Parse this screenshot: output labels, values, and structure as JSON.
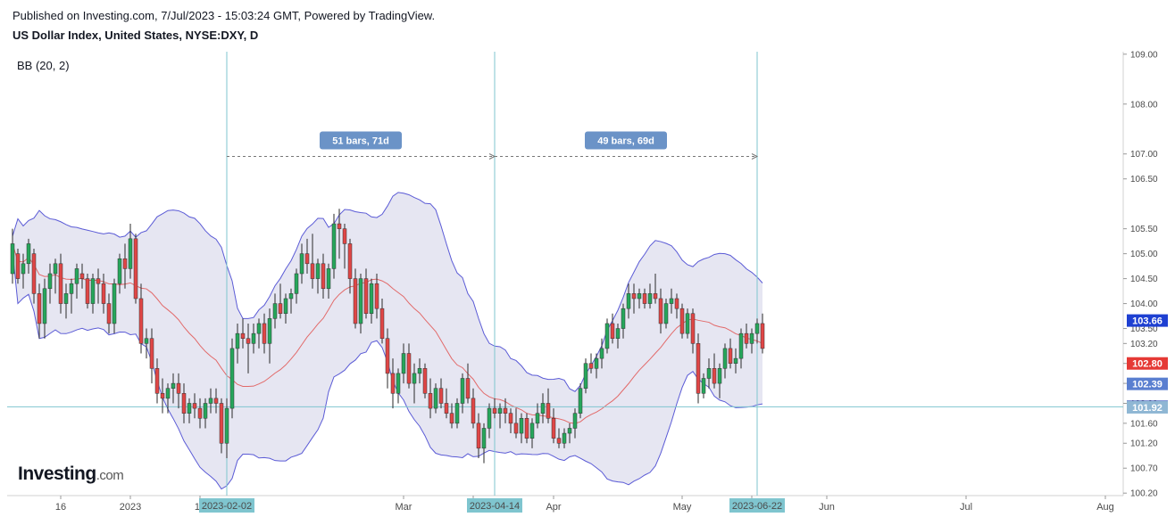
{
  "header": {
    "published": "Published on Investing.com, 7/Jul/2023 - 15:03:24 GMT, Powered by TradingView.",
    "title": "US Dollar Index, United States, NYSE:DXY, D",
    "indicator": "BB (20, 2)"
  },
  "logo": {
    "main": "Investing",
    "suffix": ".com"
  },
  "colors": {
    "up": "#26a65b",
    "down": "#e04646",
    "band_fill": "#e6e6f2",
    "band_line": "#5b5bd6",
    "basis": "#e26a6a",
    "vline": "#7fc5cf",
    "measure_label": "#6b93c7"
  },
  "chart_data": {
    "type": "candlestick",
    "y_axis": {
      "ylim": [
        100.15,
        109.05
      ],
      "ticks": [
        "100.20",
        "100.70",
        "101.20",
        "101.60",
        "102.00",
        "102.40",
        "102.80",
        "103.20",
        "103.50",
        "104.00",
        "104.50",
        "105.00",
        "105.50",
        "106.50",
        "107.00",
        "108.00",
        "109.00"
      ]
    },
    "x_axis": {
      "labels": [
        {
          "label": "16",
          "bar": 9
        },
        {
          "label": "2023",
          "bar": 22
        },
        {
          "label": "17",
          "bar": 35
        },
        {
          "label": "Mar",
          "bar": 73
        },
        {
          "label": "16",
          "bar": 86
        },
        {
          "label": "Apr",
          "bar": 101
        },
        {
          "label": "May",
          "bar": 125
        },
        {
          "label": "16",
          "bar": 138
        },
        {
          "label": "Jun",
          "bar": 152
        },
        {
          "label": "Jul",
          "bar": 178
        },
        {
          "label": "Aug",
          "bar": 204
        }
      ],
      "total_bars": 210
    },
    "candles": [
      [
        104.6,
        105.5,
        104.4,
        105.2
      ],
      [
        105.0,
        105.1,
        104.4,
        104.5
      ],
      [
        104.6,
        105.0,
        104.3,
        104.8
      ],
      [
        104.8,
        105.3,
        104.6,
        105.2
      ],
      [
        105.0,
        105.1,
        104.0,
        104.2
      ],
      [
        104.2,
        104.4,
        103.3,
        103.6
      ],
      [
        103.6,
        104.5,
        103.3,
        104.3
      ],
      [
        104.3,
        104.8,
        104.0,
        104.6
      ],
      [
        104.6,
        104.9,
        104.2,
        104.8
      ],
      [
        104.8,
        105.0,
        103.8,
        104.0
      ],
      [
        104.0,
        104.4,
        103.7,
        104.2
      ],
      [
        104.2,
        104.5,
        103.8,
        104.4
      ],
      [
        104.4,
        104.8,
        104.1,
        104.7
      ],
      [
        104.6,
        104.8,
        104.3,
        104.5
      ],
      [
        104.5,
        104.6,
        103.9,
        104.0
      ],
      [
        104.0,
        104.6,
        103.8,
        104.5
      ],
      [
        104.5,
        104.7,
        104.0,
        104.4
      ],
      [
        104.4,
        104.6,
        103.8,
        104.0
      ],
      [
        104.0,
        104.2,
        103.4,
        103.6
      ],
      [
        103.6,
        104.5,
        103.4,
        104.4
      ],
      [
        104.4,
        105.0,
        104.2,
        104.9
      ],
      [
        104.9,
        105.2,
        104.3,
        104.7
      ],
      [
        104.7,
        105.6,
        104.5,
        105.3
      ],
      [
        105.3,
        105.4,
        104.0,
        104.1
      ],
      [
        104.1,
        104.4,
        103.0,
        103.2
      ],
      [
        103.2,
        103.5,
        102.9,
        103.3
      ],
      [
        103.3,
        103.5,
        102.4,
        102.7
      ],
      [
        102.7,
        102.9,
        102.0,
        102.2
      ],
      [
        102.2,
        102.5,
        101.8,
        102.1
      ],
      [
        102.1,
        102.4,
        101.8,
        102.3
      ],
      [
        102.3,
        102.6,
        102.0,
        102.4
      ],
      [
        102.4,
        102.6,
        101.9,
        102.2
      ],
      [
        102.2,
        102.4,
        101.6,
        101.8
      ],
      [
        101.8,
        102.1,
        101.6,
        102.0
      ],
      [
        102.0,
        102.2,
        101.7,
        101.9
      ],
      [
        101.9,
        102.1,
        101.5,
        101.7
      ],
      [
        101.7,
        102.1,
        101.5,
        102.0
      ],
      [
        102.0,
        102.3,
        101.8,
        102.1
      ],
      [
        102.1,
        102.3,
        101.8,
        102.0
      ],
      [
        102.0,
        102.1,
        101.0,
        101.2
      ],
      [
        101.2,
        102.1,
        100.9,
        101.9
      ],
      [
        101.9,
        103.3,
        101.7,
        103.1
      ],
      [
        103.1,
        103.6,
        102.8,
        103.4
      ],
      [
        103.4,
        103.7,
        103.1,
        103.3
      ],
      [
        103.3,
        103.6,
        102.6,
        103.2
      ],
      [
        103.2,
        103.6,
        103.0,
        103.4
      ],
      [
        103.4,
        103.7,
        103.1,
        103.6
      ],
      [
        103.6,
        103.8,
        103.0,
        103.2
      ],
      [
        103.2,
        103.9,
        102.8,
        103.7
      ],
      [
        103.7,
        104.2,
        103.5,
        104.0
      ],
      [
        104.0,
        104.4,
        103.7,
        103.8
      ],
      [
        103.8,
        104.2,
        103.6,
        104.1
      ],
      [
        104.1,
        104.3,
        103.8,
        104.2
      ],
      [
        104.2,
        104.7,
        104.0,
        104.6
      ],
      [
        104.6,
        105.2,
        104.4,
        105.0
      ],
      [
        105.0,
        105.3,
        104.6,
        104.8
      ],
      [
        104.8,
        105.4,
        104.3,
        104.5
      ],
      [
        104.5,
        104.9,
        104.2,
        104.8
      ],
      [
        104.8,
        105.0,
        104.1,
        104.3
      ],
      [
        104.3,
        104.8,
        104.1,
        104.7
      ],
      [
        104.7,
        105.8,
        104.5,
        105.6
      ],
      [
        105.6,
        105.9,
        104.9,
        105.5
      ],
      [
        105.5,
        105.6,
        104.7,
        105.2
      ],
      [
        105.2,
        105.3,
        104.2,
        104.5
      ],
      [
        104.5,
        104.7,
        103.5,
        103.6
      ],
      [
        103.6,
        104.6,
        103.4,
        104.5
      ],
      [
        104.5,
        104.7,
        103.7,
        103.8
      ],
      [
        103.8,
        104.5,
        103.6,
        104.4
      ],
      [
        104.4,
        104.6,
        103.7,
        103.9
      ],
      [
        103.9,
        104.1,
        103.2,
        103.3
      ],
      [
        103.3,
        103.5,
        102.3,
        102.6
      ],
      [
        102.6,
        102.9,
        101.9,
        102.2
      ],
      [
        102.2,
        102.7,
        102.0,
        102.6
      ],
      [
        102.6,
        103.2,
        102.4,
        103.0
      ],
      [
        103.0,
        103.2,
        102.3,
        102.4
      ],
      [
        102.4,
        102.8,
        102.0,
        102.6
      ],
      [
        102.6,
        102.9,
        102.4,
        102.7
      ],
      [
        102.7,
        102.8,
        102.1,
        102.2
      ],
      [
        102.2,
        102.5,
        101.7,
        101.9
      ],
      [
        101.9,
        102.4,
        101.8,
        102.3
      ],
      [
        102.3,
        102.5,
        101.9,
        102.0
      ],
      [
        102.0,
        102.3,
        101.7,
        101.8
      ],
      [
        101.8,
        102.0,
        101.5,
        101.6
      ],
      [
        101.6,
        102.1,
        101.5,
        102.0
      ],
      [
        102.0,
        102.6,
        101.8,
        102.5
      ],
      [
        102.5,
        102.8,
        102.0,
        102.1
      ],
      [
        102.1,
        102.3,
        101.5,
        101.6
      ],
      [
        101.6,
        101.8,
        100.9,
        101.1
      ],
      [
        101.1,
        101.6,
        100.8,
        101.5
      ],
      [
        101.5,
        102.0,
        101.3,
        101.9
      ],
      [
        101.9,
        102.1,
        101.7,
        101.8
      ],
      [
        101.8,
        102.0,
        101.5,
        101.9
      ],
      [
        101.9,
        102.1,
        101.6,
        101.8
      ],
      [
        101.8,
        101.9,
        101.4,
        101.6
      ],
      [
        101.6,
        101.9,
        101.3,
        101.4
      ],
      [
        101.4,
        101.8,
        101.2,
        101.7
      ],
      [
        101.7,
        101.8,
        101.2,
        101.3
      ],
      [
        101.3,
        101.7,
        101.1,
        101.6
      ],
      [
        101.6,
        102.0,
        101.5,
        101.8
      ],
      [
        101.8,
        102.2,
        101.6,
        102.0
      ],
      [
        102.0,
        102.3,
        101.6,
        101.7
      ],
      [
        101.7,
        101.9,
        101.2,
        101.3
      ],
      [
        101.3,
        101.5,
        101.1,
        101.2
      ],
      [
        101.2,
        101.5,
        101.1,
        101.4
      ],
      [
        101.4,
        101.6,
        101.2,
        101.5
      ],
      [
        101.5,
        101.9,
        101.3,
        101.8
      ],
      [
        101.8,
        102.4,
        101.7,
        102.3
      ],
      [
        102.3,
        102.9,
        102.2,
        102.8
      ],
      [
        102.8,
        103.0,
        102.6,
        102.7
      ],
      [
        102.7,
        103.0,
        102.5,
        102.9
      ],
      [
        102.9,
        103.3,
        102.7,
        103.1
      ],
      [
        103.1,
        103.7,
        103.0,
        103.6
      ],
      [
        103.6,
        103.8,
        103.2,
        103.3
      ],
      [
        103.3,
        103.6,
        103.1,
        103.5
      ],
      [
        103.5,
        104.0,
        103.3,
        103.9
      ],
      [
        103.9,
        104.4,
        103.7,
        104.2
      ],
      [
        104.2,
        104.4,
        103.8,
        104.1
      ],
      [
        104.1,
        104.3,
        103.9,
        104.2
      ],
      [
        104.2,
        104.3,
        103.9,
        104.0
      ],
      [
        104.0,
        104.4,
        103.9,
        104.2
      ],
      [
        104.2,
        104.6,
        104.0,
        104.1
      ],
      [
        104.1,
        104.3,
        103.4,
        103.6
      ],
      [
        103.6,
        104.1,
        103.5,
        104.0
      ],
      [
        104.0,
        104.3,
        103.8,
        104.1
      ],
      [
        104.1,
        104.2,
        103.7,
        103.9
      ],
      [
        103.9,
        104.0,
        103.3,
        103.4
      ],
      [
        103.4,
        103.9,
        103.3,
        103.8
      ],
      [
        103.8,
        103.9,
        103.0,
        103.2
      ],
      [
        103.2,
        103.4,
        102.0,
        102.2
      ],
      [
        102.2,
        102.6,
        102.1,
        102.5
      ],
      [
        102.5,
        102.9,
        102.3,
        102.7
      ],
      [
        102.7,
        103.0,
        102.3,
        102.4
      ],
      [
        102.4,
        102.8,
        102.1,
        102.7
      ],
      [
        102.7,
        103.2,
        102.5,
        103.1
      ],
      [
        103.1,
        103.3,
        102.7,
        102.8
      ],
      [
        102.8,
        103.1,
        102.6,
        102.9
      ],
      [
        102.9,
        103.5,
        102.7,
        103.4
      ],
      [
        103.4,
        103.6,
        103.1,
        103.2
      ],
      [
        103.2,
        103.5,
        103.0,
        103.4
      ],
      [
        103.4,
        103.7,
        103.2,
        103.6
      ],
      [
        103.6,
        103.8,
        103.0,
        103.1
      ]
    ],
    "vertical_markers": [
      {
        "label": "2023-02-02",
        "bar": 40
      },
      {
        "label": "2023-04-14",
        "bar": 90
      },
      {
        "label": "2023-06-22",
        "bar": 139
      }
    ],
    "measures": [
      {
        "label": "51 bars, 71d",
        "from_bar": 40,
        "to_bar": 90,
        "y": 106.95
      },
      {
        "label": "49 bars, 69d",
        "from_bar": 90,
        "to_bar": 139,
        "y": 106.95
      }
    ],
    "horizontal_line": {
      "value": 101.93
    },
    "price_tags": [
      {
        "label": "103.66",
        "value": 103.66,
        "color": "#1e40d2"
      },
      {
        "label": "102.80",
        "value": 102.8,
        "color": "#e53935"
      },
      {
        "label": "102.39",
        "value": 102.39,
        "color": "#5a7fd0"
      },
      {
        "label": "101.93",
        "value": 101.93,
        "color": "#1e3fb4"
      },
      {
        "label": "101.92",
        "value": 101.92,
        "color": "#8fb7d4"
      }
    ]
  }
}
